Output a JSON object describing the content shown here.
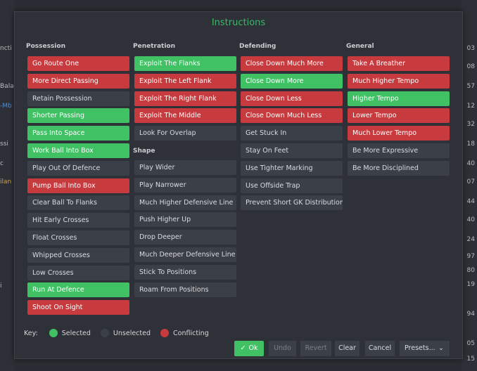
{
  "dialog_title": "Instructions",
  "columns": {
    "possession": {
      "title": "Possession",
      "items": [
        {
          "label": "Go Route One",
          "state": "conflicting"
        },
        {
          "label": "More Direct Passing",
          "state": "conflicting"
        },
        {
          "label": "Retain Possession",
          "state": "unselected"
        },
        {
          "label": "Shorter Passing",
          "state": "selected"
        },
        {
          "label": "Pass Into Space",
          "state": "selected"
        },
        {
          "label": "Work Ball Into Box",
          "state": "selected"
        },
        {
          "label": "Play Out Of Defence",
          "state": "unselected"
        },
        {
          "label": "Pump Ball Into Box",
          "state": "conflicting"
        },
        {
          "label": "Clear Ball To Flanks",
          "state": "unselected"
        },
        {
          "label": "Hit Early Crosses",
          "state": "unselected"
        },
        {
          "label": "Float Crosses",
          "state": "unselected"
        },
        {
          "label": "Whipped Crosses",
          "state": "unselected"
        },
        {
          "label": "Low Crosses",
          "state": "unselected"
        },
        {
          "label": "Run At Defence",
          "state": "selected"
        },
        {
          "label": "Shoot On Sight",
          "state": "conflicting"
        }
      ]
    },
    "penetration": {
      "title": "Penetration",
      "items": [
        {
          "label": "Exploit The Flanks",
          "state": "selected"
        },
        {
          "label": "Exploit The Left Flank",
          "state": "conflicting"
        },
        {
          "label": "Exploit The Right Flank",
          "state": "conflicting"
        },
        {
          "label": "Exploit The Middle",
          "state": "conflicting"
        },
        {
          "label": "Look For Overlap",
          "state": "unselected"
        }
      ]
    },
    "shape": {
      "title": "Shape",
      "items": [
        {
          "label": "Play Wider",
          "state": "unselected"
        },
        {
          "label": "Play Narrower",
          "state": "unselected"
        },
        {
          "label": "Much Higher Defensive Line",
          "state": "unselected"
        },
        {
          "label": "Push Higher Up",
          "state": "unselected"
        },
        {
          "label": "Drop Deeper",
          "state": "unselected"
        },
        {
          "label": "Much Deeper Defensive Line",
          "state": "unselected"
        },
        {
          "label": "Stick To Positions",
          "state": "unselected"
        },
        {
          "label": "Roam From Positions",
          "state": "unselected"
        }
      ]
    },
    "defending": {
      "title": "Defending",
      "items": [
        {
          "label": "Close Down Much More",
          "state": "conflicting"
        },
        {
          "label": "Close Down More",
          "state": "selected"
        },
        {
          "label": "Close Down Less",
          "state": "conflicting"
        },
        {
          "label": "Close Down Much Less",
          "state": "conflicting"
        },
        {
          "label": "Get Stuck In",
          "state": "unselected"
        },
        {
          "label": "Stay On Feet",
          "state": "unselected"
        },
        {
          "label": "Use Tighter Marking",
          "state": "unselected"
        },
        {
          "label": "Use Offside Trap",
          "state": "unselected"
        },
        {
          "label": "Prevent Short GK Distribution",
          "state": "unselected"
        }
      ]
    },
    "general": {
      "title": "General",
      "items": [
        {
          "label": "Take A Breather",
          "state": "conflicting"
        },
        {
          "label": "Much Higher Tempo",
          "state": "conflicting"
        },
        {
          "label": "Higher Tempo",
          "state": "selected"
        },
        {
          "label": "Lower Tempo",
          "state": "conflicting"
        },
        {
          "label": "Much Lower Tempo",
          "state": "conflicting"
        },
        {
          "label": "Be More Expressive",
          "state": "unselected"
        },
        {
          "label": "Be More Disciplined",
          "state": "unselected"
        }
      ]
    }
  },
  "key": {
    "label": "Key:",
    "selected": "Selected",
    "unselected": "Unselected",
    "conflicting": "Conflicting"
  },
  "colors": {
    "selected": "#3fc164",
    "unselected": "#3b3f47",
    "conflicting": "#c73a3e",
    "title": "#3fb56a"
  },
  "footer": {
    "ok": "Ok",
    "undo": "Undo",
    "revert": "Revert",
    "clear": "Clear",
    "cancel": "Cancel",
    "presets": "Presets..."
  },
  "background": {
    "left_fragments": [
      "ncti",
      "Bala",
      "-Mb",
      "ssi",
      "c",
      "ilan",
      "i"
    ],
    "right_numbers": [
      "03",
      "08",
      "57",
      "12",
      "32",
      "18",
      "40",
      "07",
      "44",
      "40",
      "24",
      "97",
      "80",
      "19",
      "94",
      "05",
      "15"
    ]
  }
}
